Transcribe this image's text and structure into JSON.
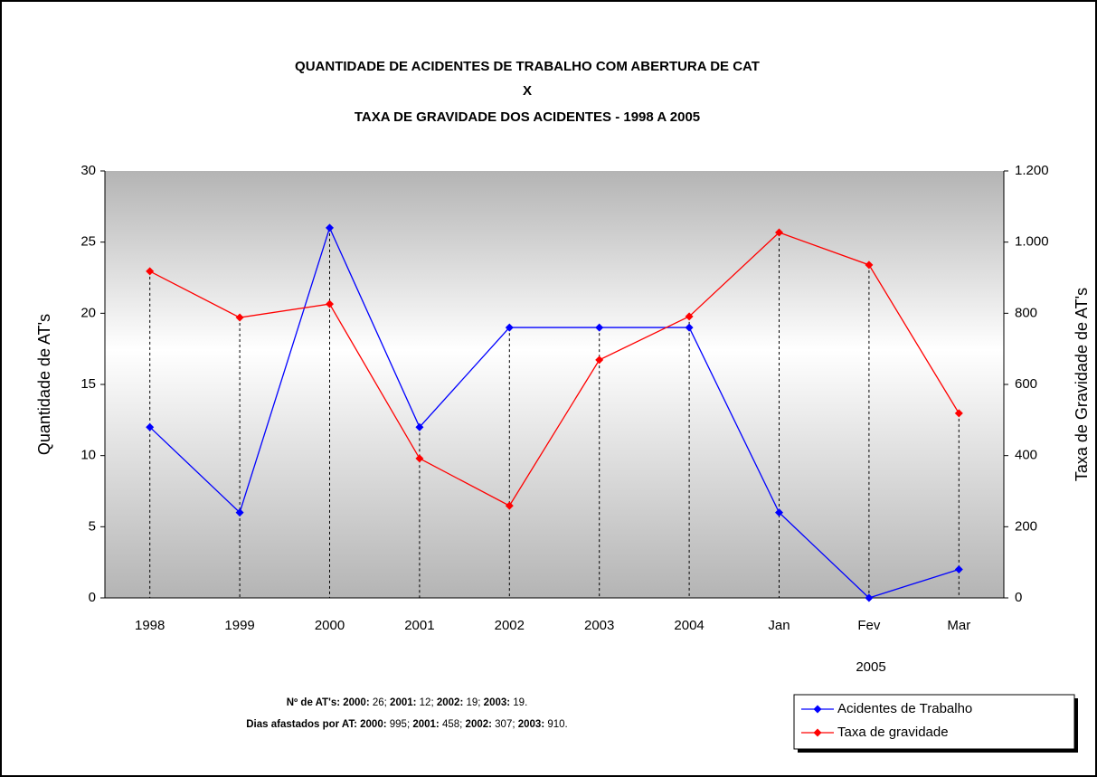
{
  "chart_data": {
    "type": "line",
    "title": [
      "QUANTIDADE DE ACIDENTES DE TRABALHO COM ABERTURA DE CAT",
      "X",
      "TAXA DE GRAVIDADE DOS ACIDENTES - 1998 A 2005"
    ],
    "categories": [
      "1998",
      "1999",
      "2000",
      "2001",
      "2002",
      "2003",
      "2004",
      "Jan",
      "Fev",
      "Mar"
    ],
    "category_group": "2005",
    "ylabel": "Quantidade de AT's",
    "y2label": "Taxa de Gravidade de AT's",
    "ylim": [
      0,
      30
    ],
    "yticks": [
      0,
      5,
      10,
      15,
      20,
      25,
      30
    ],
    "y2lim": [
      0,
      1200
    ],
    "y2ticks": [
      0,
      200,
      400,
      600,
      800,
      {
        "value": 1000,
        "label": "1.000"
      },
      {
        "value": 1200,
        "label": "1.200"
      }
    ],
    "series": [
      {
        "name": "Acidentes de Trabalho",
        "color": "#0000ff",
        "values": [
          12,
          6,
          26,
          12,
          19,
          19,
          19,
          6,
          0,
          2
        ]
      },
      {
        "name": "Taxa de gravidade",
        "color": "#ff0000",
        "axis": "y2",
        "values": [
          918,
          788,
          826,
          392,
          259,
          669,
          791,
          1027,
          936,
          519
        ]
      }
    ],
    "notes": [
      [
        "Nº de AT's:  2000:",
        " 26;  ",
        "2001:",
        " 12;  ",
        "2002:",
        " 19;  ",
        "2003:",
        " 19."
      ],
      [
        "Dias afastados por AT: 2000:",
        " 995;  ",
        "2001:",
        " 458;   ",
        "2002:",
        " 307;  ",
        "2003:",
        " 910."
      ]
    ],
    "legend": "bottom-right"
  }
}
